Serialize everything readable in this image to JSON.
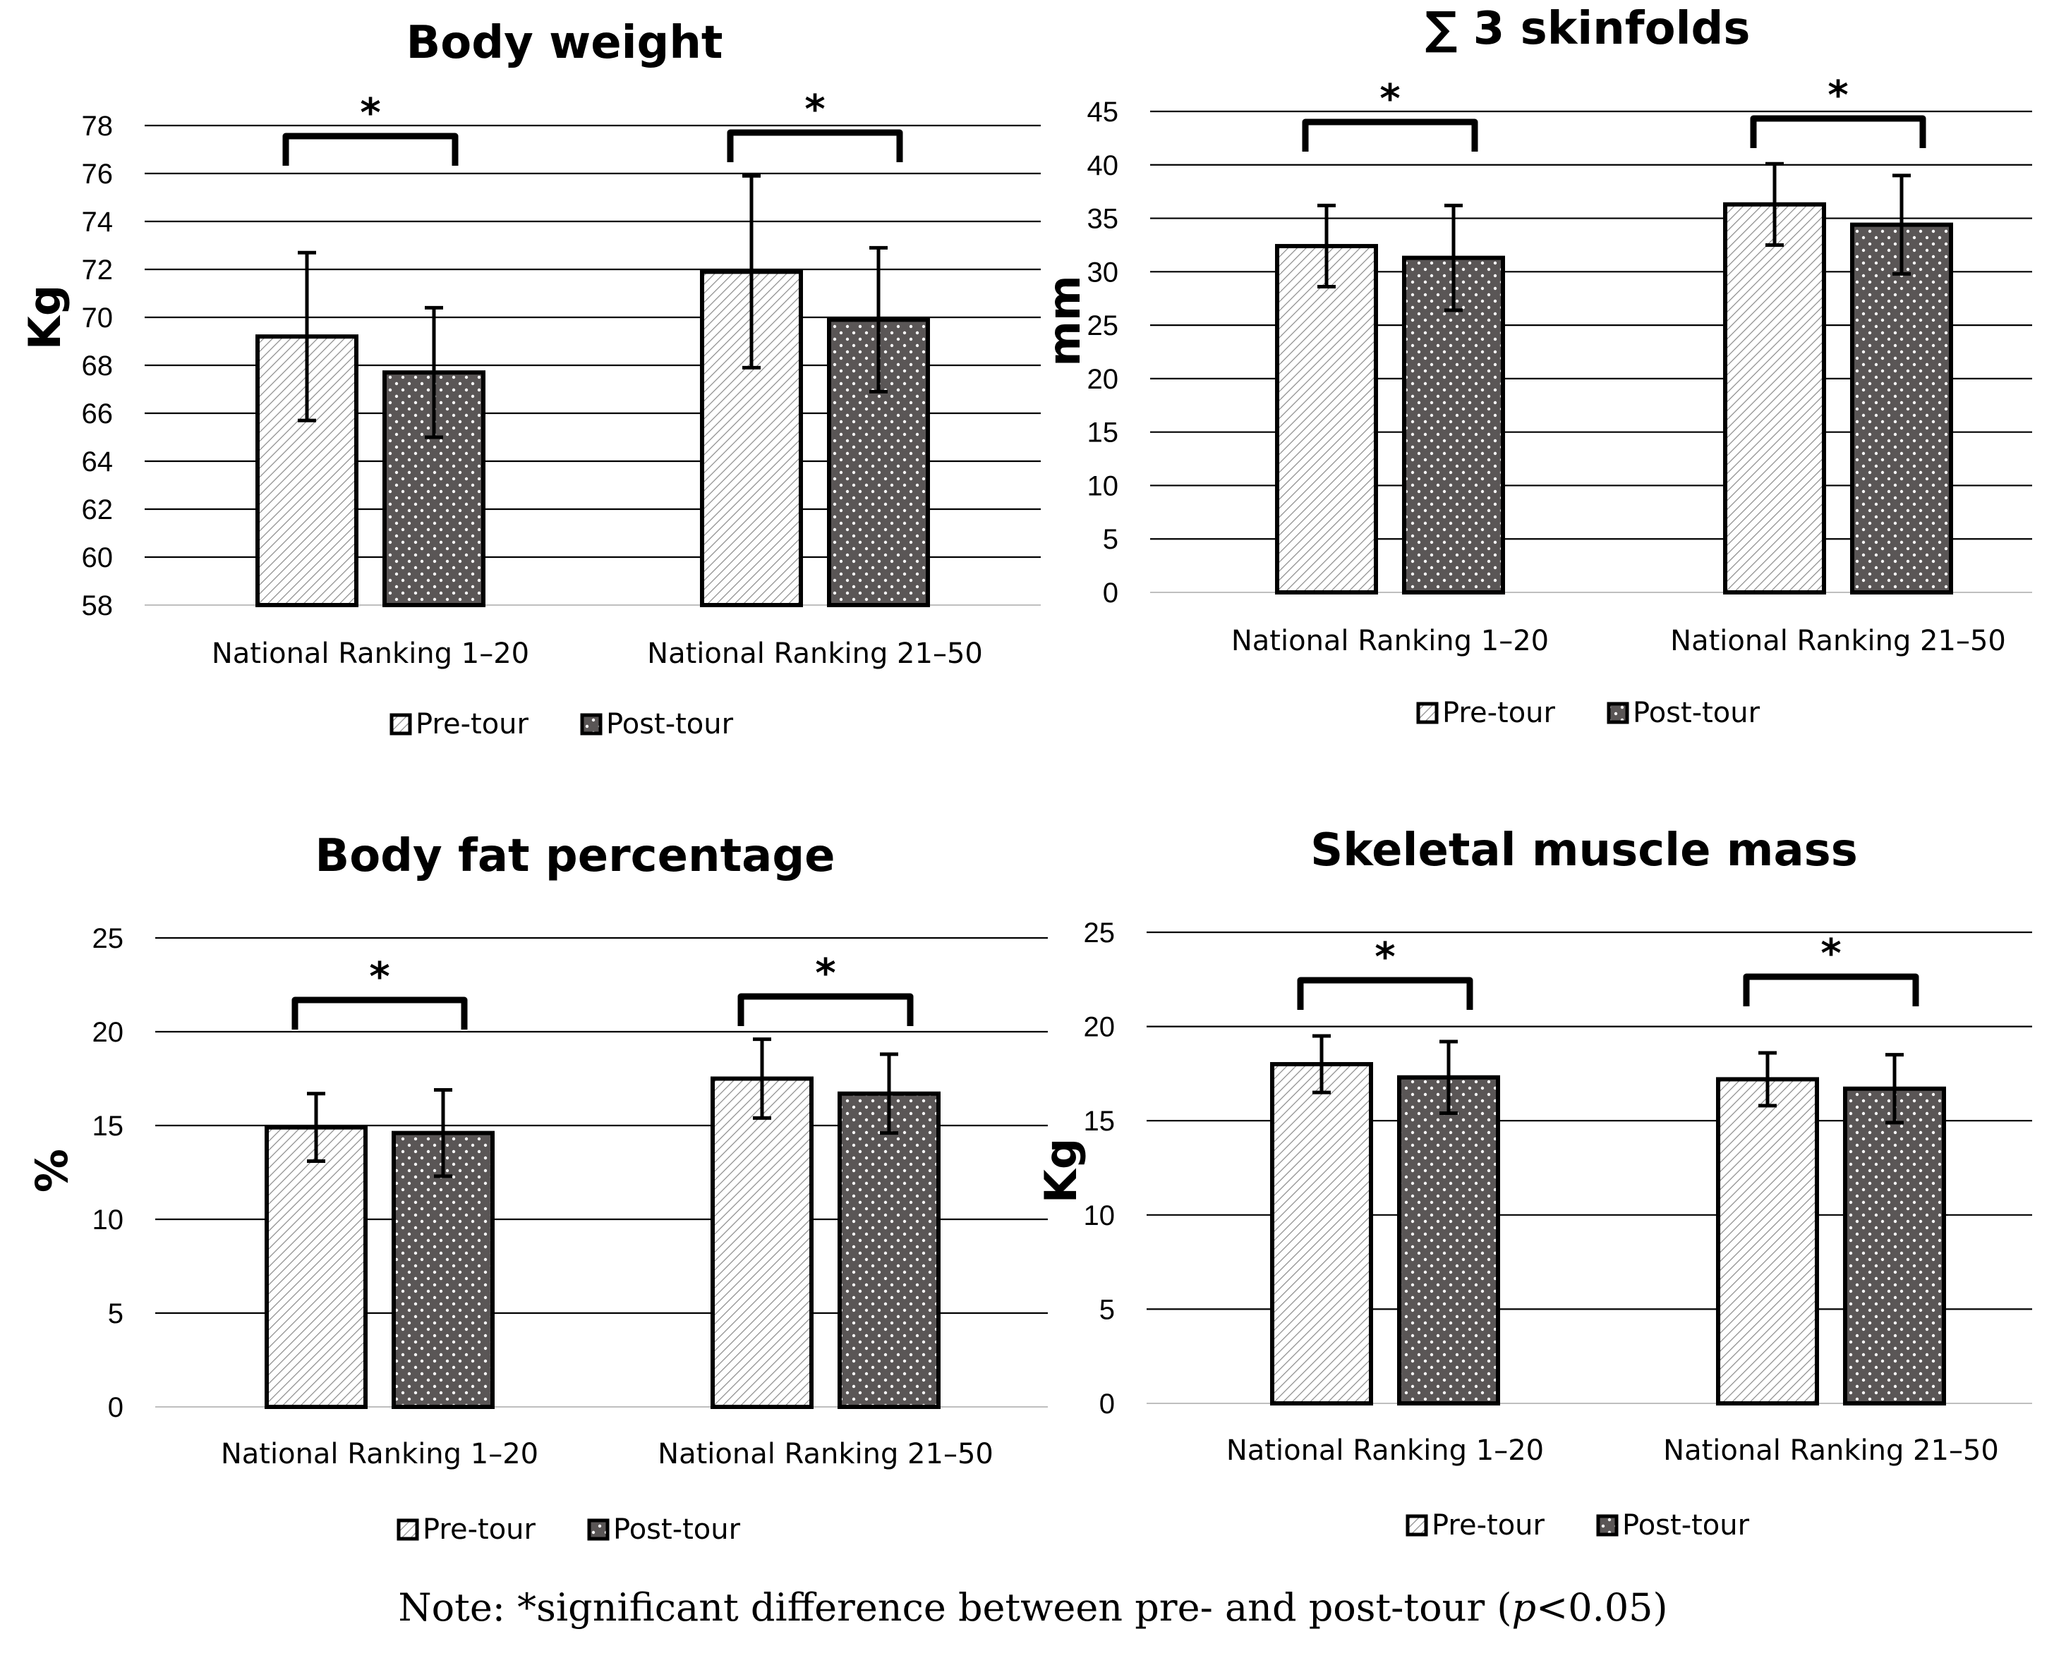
{
  "chart_data": [
    {
      "type": "bar",
      "title": "Body weight",
      "ylabel": "Kg",
      "xlabel": "",
      "ylim": [
        58,
        78
      ],
      "yticks": [
        58,
        60,
        62,
        64,
        66,
        68,
        70,
        72,
        74,
        76,
        78
      ],
      "categories": [
        "National Ranking 1–20",
        "National Ranking 21–50"
      ],
      "series": [
        {
          "name": "Pre-tour",
          "values": [
            69.2,
            71.9
          ],
          "errors": [
            3.5,
            4.0
          ]
        },
        {
          "name": "Post-tour",
          "values": [
            67.7,
            69.9
          ],
          "errors": [
            2.7,
            3.0
          ]
        }
      ],
      "significance": [
        "*",
        "*"
      ],
      "legend": "bottom"
    },
    {
      "type": "bar",
      "title": "∑ 3 skinfolds",
      "ylabel": "mm",
      "xlabel": "",
      "ylim": [
        0,
        45
      ],
      "yticks": [
        0,
        5,
        10,
        15,
        20,
        25,
        30,
        35,
        40,
        45
      ],
      "categories": [
        "National Ranking 1–20",
        "National Ranking 21–50"
      ],
      "series": [
        {
          "name": "Pre-tour",
          "values": [
            32.4,
            36.3
          ],
          "errors": [
            3.8,
            3.8
          ]
        },
        {
          "name": "Post-tour",
          "values": [
            31.3,
            34.4
          ],
          "errors": [
            4.9,
            4.6
          ]
        }
      ],
      "significance": [
        "*",
        "*"
      ],
      "legend": "bottom"
    },
    {
      "type": "bar",
      "title": "Body fat percentage",
      "ylabel": "%",
      "xlabel": "",
      "ylim": [
        0,
        25
      ],
      "yticks": [
        0,
        5,
        10,
        15,
        20,
        25
      ],
      "categories": [
        "National Ranking 1–20",
        "National Ranking 21–50"
      ],
      "series": [
        {
          "name": "Pre-tour",
          "values": [
            14.9,
            17.5
          ],
          "errors": [
            1.8,
            2.1
          ]
        },
        {
          "name": "Post-tour",
          "values": [
            14.6,
            16.7
          ],
          "errors": [
            2.3,
            2.1
          ]
        }
      ],
      "significance": [
        "*",
        "*"
      ],
      "legend": "bottom"
    },
    {
      "type": "bar",
      "title": "Skeletal muscle mass",
      "ylabel": "Kg",
      "xlabel": "",
      "ylim": [
        0,
        25
      ],
      "yticks": [
        0,
        5,
        10,
        15,
        20,
        25
      ],
      "categories": [
        "National Ranking 1–20",
        "National Ranking 21–50"
      ],
      "series": [
        {
          "name": "Pre-tour",
          "values": [
            18.0,
            17.2
          ],
          "errors": [
            1.5,
            1.4
          ]
        },
        {
          "name": "Post-tour",
          "values": [
            17.3,
            16.7
          ],
          "errors": [
            1.9,
            1.8
          ]
        }
      ],
      "significance": [
        "*",
        "*"
      ],
      "legend": "bottom"
    }
  ],
  "note": "Note: *significant difference between pre- and post-tour (p<0.05)",
  "colors": {
    "pre_fill": "#ffffff",
    "pre_hatch": "#8a8a8a",
    "post_fill": "#5a5656",
    "post_dot": "#ffffff",
    "axis": "#000000",
    "grid": "#000000",
    "cat_axis": "#bfbfbf"
  }
}
